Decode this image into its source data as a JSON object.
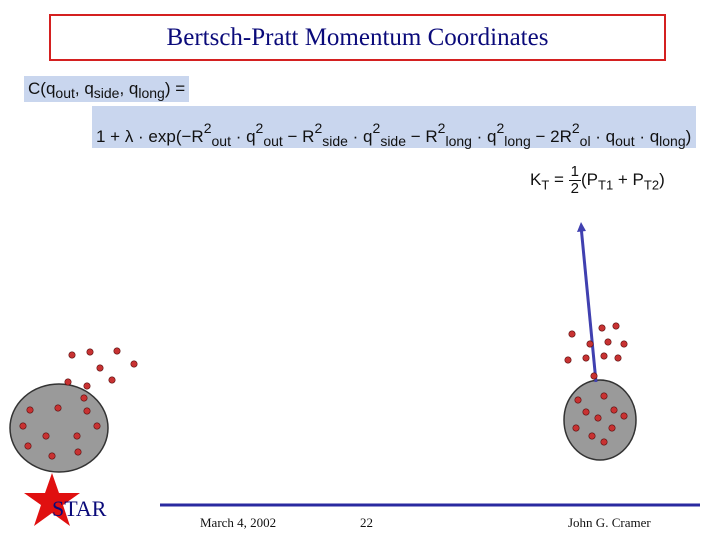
{
  "title": "Bertsch-Pratt Momentum Coordinates",
  "equations": {
    "lhs": "C(q_out, q_side, q_long) =",
    "rhs": "1 + λ · exp(−R²_out · q²_out − R²_side · q²_side − R²_long · q²_long − 2R²_ol · q_out · q_long)",
    "kt": "K_T = ½ (P_T1 + P_T2)"
  },
  "footer": {
    "logo": "STAR",
    "date": "March 4, 2002",
    "page": "22",
    "author": "John G. Cramer"
  },
  "colors": {
    "title_border": "#d42020",
    "title_text": "#0a0a7a",
    "equation_bg": "#c9d6ee",
    "vector": "#4040b0",
    "particle": "#c83232",
    "blob": "#9a9a9a",
    "footer_rule": "#2a2aa0",
    "star": "#e01010"
  }
}
